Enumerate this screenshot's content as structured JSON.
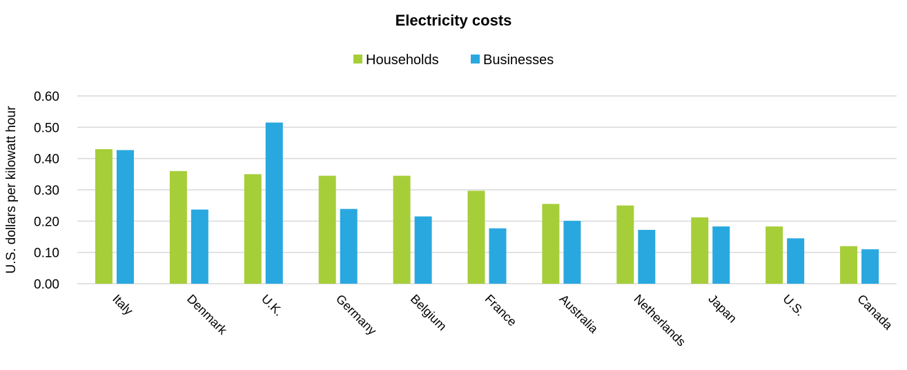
{
  "chart_data": {
    "type": "bar",
    "title": "Electricity costs",
    "ylabel": "U.S. dollars per kilowatt hour",
    "xlabel": "",
    "categories": [
      "Italy",
      "Denmark",
      "U.K.",
      "Germany",
      "Belgium",
      "France",
      "Australia",
      "Netherlands",
      "Japan",
      "U.S.",
      "Canada"
    ],
    "series": [
      {
        "name": "Households",
        "color": "#a6ce39",
        "values": [
          0.43,
          0.36,
          0.35,
          0.345,
          0.345,
          0.297,
          0.255,
          0.25,
          0.212,
          0.183,
          0.12
        ]
      },
      {
        "name": "Businesses",
        "color": "#29a8e0",
        "values": [
          0.427,
          0.237,
          0.515,
          0.239,
          0.215,
          0.177,
          0.201,
          0.172,
          0.183,
          0.145,
          0.11
        ]
      }
    ],
    "ylim": [
      0,
      0.6
    ],
    "yticks": [
      "0.00",
      "0.10",
      "0.20",
      "0.30",
      "0.40",
      "0.50",
      "0.60"
    ],
    "grid": true,
    "legend_position": "top-center"
  }
}
